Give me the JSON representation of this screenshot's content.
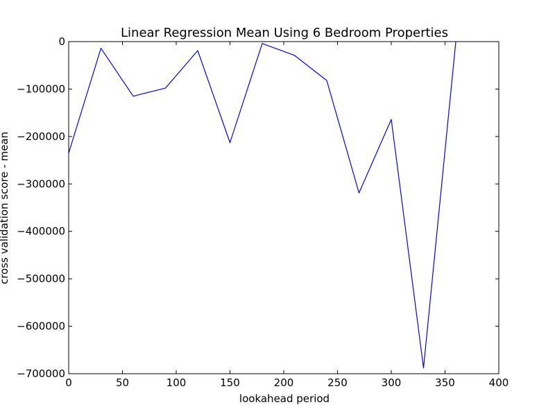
{
  "chart_data": {
    "type": "line",
    "title": "Linear Regression Mean Using 6 Bedroom Properties",
    "xlabel": "lookahead period",
    "ylabel": "cross validation score - mean",
    "xlim": [
      0,
      400
    ],
    "ylim": [
      -700000,
      0
    ],
    "xticks": [
      0,
      50,
      100,
      150,
      200,
      250,
      300,
      350,
      400
    ],
    "xtick_labels": [
      "0",
      "50",
      "100",
      "150",
      "200",
      "250",
      "300",
      "350",
      "400"
    ],
    "yticks": [
      0,
      -100000,
      -200000,
      -300000,
      -400000,
      -500000,
      -600000,
      -700000
    ],
    "ytick_labels": [
      "0",
      "−100000",
      "−200000",
      "−300000",
      "−400000",
      "−500000",
      "−600000",
      "−700000"
    ],
    "grid": false,
    "legend": "none",
    "series": [
      {
        "color": "#0000ff",
        "x": [
          0,
          30,
          60,
          90,
          120,
          150,
          180,
          210,
          240,
          270,
          300,
          330,
          360
        ],
        "y": [
          -235000,
          -14000,
          -115000,
          -98000,
          -19000,
          -213000,
          -4000,
          -29000,
          -82000,
          -319000,
          -164000,
          -688000,
          0
        ]
      }
    ]
  }
}
